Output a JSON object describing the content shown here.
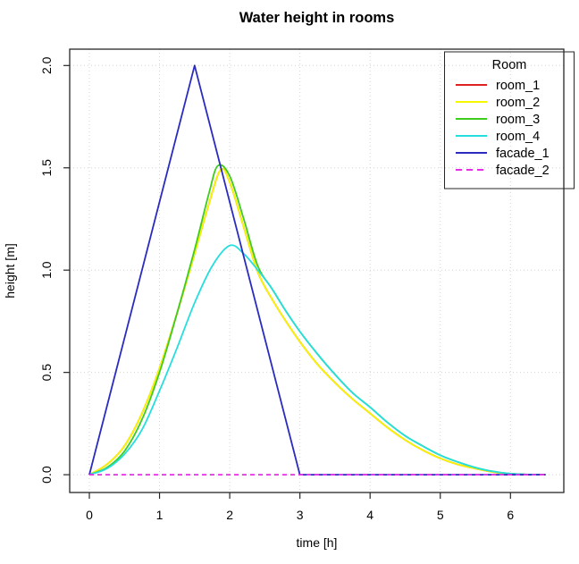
{
  "figure": {
    "title": "Water height in rooms",
    "xlabel": "time [h]",
    "ylabel": "height [m]",
    "legend_title": "Room",
    "colors": {
      "background": "#ffffff",
      "grid": "#d4d4d4",
      "axis": "#262626",
      "text": "#000000"
    }
  },
  "chart_data": {
    "type": "line",
    "title": "Water height in rooms",
    "xlabel": "time [h]",
    "ylabel": "height [m]",
    "xlim": [
      -0.28,
      6.76
    ],
    "ylim": [
      -0.087,
      2.08
    ],
    "xticks": [
      0,
      1,
      2,
      3,
      4,
      5,
      6
    ],
    "xtick_labels": [
      "0",
      "1",
      "2",
      "3",
      "4",
      "5",
      "6"
    ],
    "yticks": [
      0.0,
      0.5,
      1.0,
      1.5,
      2.0
    ],
    "ytick_labels": [
      "0.0",
      "0.5",
      "1.0",
      "1.5",
      "2.0"
    ],
    "grid": true,
    "legend": {
      "title": "Room",
      "position": "top-right"
    },
    "series": [
      {
        "name": "room_1",
        "color": "#de2121",
        "dash": "solid",
        "smooth": true,
        "points": [
          [
            0,
            0
          ],
          [
            0.25,
            0.05
          ],
          [
            0.5,
            0.14
          ],
          [
            0.75,
            0.3
          ],
          [
            1,
            0.52
          ],
          [
            1.25,
            0.79
          ],
          [
            1.5,
            1.08
          ],
          [
            1.7,
            1.32
          ],
          [
            1.87,
            1.49
          ],
          [
            2,
            1.43
          ],
          [
            2.2,
            1.21
          ],
          [
            2.4,
            0.99
          ],
          [
            2.6,
            0.86
          ],
          [
            2.8,
            0.75
          ],
          [
            3,
            0.65
          ],
          [
            3.25,
            0.54
          ],
          [
            3.5,
            0.45
          ],
          [
            3.75,
            0.37
          ],
          [
            4,
            0.3
          ],
          [
            4.25,
            0.23
          ],
          [
            4.5,
            0.17
          ],
          [
            4.75,
            0.12
          ],
          [
            5,
            0.08
          ],
          [
            5.25,
            0.05
          ],
          [
            5.5,
            0.03
          ],
          [
            5.75,
            0.013
          ],
          [
            6,
            0.004
          ],
          [
            6.25,
            0.001
          ],
          [
            6.5,
            0
          ]
        ]
      },
      {
        "name": "room_2",
        "color": "#f7f700",
        "dash": "solid",
        "smooth": true,
        "points": [
          [
            0,
            0
          ],
          [
            0.25,
            0.05
          ],
          [
            0.5,
            0.14
          ],
          [
            0.75,
            0.3
          ],
          [
            1,
            0.52
          ],
          [
            1.25,
            0.79
          ],
          [
            1.5,
            1.08
          ],
          [
            1.7,
            1.32
          ],
          [
            1.87,
            1.49
          ],
          [
            2,
            1.43
          ],
          [
            2.2,
            1.21
          ],
          [
            2.4,
            0.99
          ],
          [
            2.6,
            0.86
          ],
          [
            2.8,
            0.75
          ],
          [
            3,
            0.65
          ],
          [
            3.25,
            0.54
          ],
          [
            3.5,
            0.45
          ],
          [
            3.75,
            0.37
          ],
          [
            4,
            0.3
          ],
          [
            4.25,
            0.23
          ],
          [
            4.5,
            0.17
          ],
          [
            4.75,
            0.12
          ],
          [
            5,
            0.08
          ],
          [
            5.25,
            0.05
          ],
          [
            5.5,
            0.03
          ],
          [
            5.75,
            0.013
          ],
          [
            6,
            0.004
          ],
          [
            6.25,
            0.001
          ],
          [
            6.5,
            0
          ]
        ]
      },
      {
        "name": "room_3",
        "color": "#3ecc1e",
        "dash": "solid",
        "smooth": true,
        "points": [
          [
            0,
            0
          ],
          [
            0.25,
            0.035
          ],
          [
            0.5,
            0.115
          ],
          [
            0.75,
            0.27
          ],
          [
            1,
            0.5
          ],
          [
            1.25,
            0.79
          ],
          [
            1.5,
            1.1
          ],
          [
            1.7,
            1.37
          ],
          [
            1.83,
            1.51
          ],
          [
            2,
            1.46
          ],
          [
            2.2,
            1.25
          ],
          [
            2.4,
            1.02
          ],
          [
            2.6,
            0.91
          ],
          [
            2.8,
            0.8
          ],
          [
            3,
            0.7
          ],
          [
            3.25,
            0.59
          ],
          [
            3.5,
            0.49
          ],
          [
            3.75,
            0.4
          ],
          [
            4,
            0.33
          ],
          [
            4.25,
            0.255
          ],
          [
            4.5,
            0.19
          ],
          [
            4.75,
            0.14
          ],
          [
            5,
            0.095
          ],
          [
            5.25,
            0.062
          ],
          [
            5.5,
            0.035
          ],
          [
            5.75,
            0.016
          ],
          [
            6,
            0.005
          ],
          [
            6.25,
            0.001
          ],
          [
            6.5,
            0
          ]
        ]
      },
      {
        "name": "room_4",
        "color": "#26dede",
        "dash": "solid",
        "smooth": true,
        "points": [
          [
            0,
            0
          ],
          [
            0.25,
            0.03
          ],
          [
            0.5,
            0.1
          ],
          [
            0.75,
            0.22
          ],
          [
            1,
            0.41
          ],
          [
            1.25,
            0.62
          ],
          [
            1.5,
            0.84
          ],
          [
            1.75,
            1.02
          ],
          [
            2,
            1.12
          ],
          [
            2.2,
            1.08
          ],
          [
            2.4,
            1.0
          ],
          [
            2.6,
            0.91
          ],
          [
            2.8,
            0.8
          ],
          [
            3,
            0.7
          ],
          [
            3.25,
            0.59
          ],
          [
            3.5,
            0.49
          ],
          [
            3.75,
            0.4
          ],
          [
            4,
            0.33
          ],
          [
            4.25,
            0.255
          ],
          [
            4.5,
            0.19
          ],
          [
            4.75,
            0.14
          ],
          [
            5,
            0.095
          ],
          [
            5.25,
            0.062
          ],
          [
            5.5,
            0.035
          ],
          [
            5.75,
            0.016
          ],
          [
            6,
            0.005
          ],
          [
            6.25,
            0.001
          ],
          [
            6.5,
            0
          ]
        ]
      },
      {
        "name": "facade_1",
        "color": "#2b2bc0",
        "dash": "solid",
        "smooth": false,
        "points": [
          [
            0,
            0
          ],
          [
            1.5,
            2.0
          ],
          [
            3,
            0
          ],
          [
            6.5,
            0
          ]
        ]
      },
      {
        "name": "facade_2",
        "color": "#e231e2",
        "dash": "dashed",
        "smooth": false,
        "points": [
          [
            0,
            0
          ],
          [
            6.5,
            0
          ]
        ]
      }
    ]
  }
}
